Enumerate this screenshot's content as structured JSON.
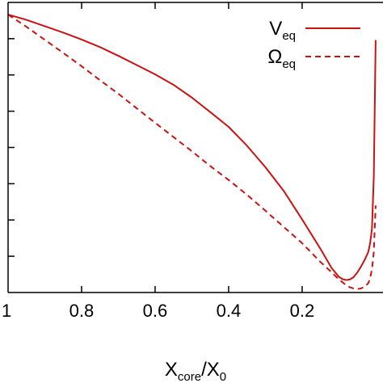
{
  "chart_data": {
    "type": "line",
    "xlabel": {
      "parts": [
        {
          "text": "X",
          "sub": false
        },
        {
          "text": "core",
          "sub": true
        },
        {
          "text": "/X",
          "sub": false
        },
        {
          "text": "0",
          "sub": true
        }
      ]
    },
    "ylabel": "",
    "x_reversed": true,
    "xlim": [
      1.0,
      -0.02
    ],
    "ylim": [
      0.0,
      1.0
    ],
    "x_ticks": [
      {
        "value": 1.0,
        "label": "1"
      },
      {
        "value": 0.8,
        "label": "0.8"
      },
      {
        "value": 0.6,
        "label": "0.6"
      },
      {
        "value": 0.4,
        "label": "0.4"
      },
      {
        "value": 0.2,
        "label": "0.2"
      }
    ],
    "y_ticks": [
      0.125,
      0.25,
      0.375,
      0.5,
      0.625,
      0.75,
      0.875
    ],
    "y_tick_labels_visible": false,
    "grid": false,
    "legend_position": "top-right",
    "series": [
      {
        "name": {
          "main": "V",
          "sub": "eq"
        },
        "style": "solid",
        "color": "#cc1111",
        "x": [
          1.0,
          0.95,
          0.9,
          0.85,
          0.8,
          0.75,
          0.7,
          0.65,
          0.6,
          0.55,
          0.5,
          0.45,
          0.4,
          0.35,
          0.3,
          0.25,
          0.2,
          0.15,
          0.12,
          0.1,
          0.09,
          0.08,
          0.07,
          0.06,
          0.05,
          0.04,
          0.03,
          0.02,
          0.015,
          0.01,
          0.005,
          0.0
        ],
        "y": [
          0.958,
          0.94,
          0.918,
          0.896,
          0.872,
          0.846,
          0.816,
          0.784,
          0.752,
          0.716,
          0.672,
          0.622,
          0.571,
          0.506,
          0.432,
          0.35,
          0.252,
          0.15,
          0.085,
          0.054,
          0.046,
          0.043,
          0.045,
          0.053,
          0.069,
          0.089,
          0.112,
          0.14,
          0.17,
          0.22,
          0.4,
          0.87
        ]
      },
      {
        "name": {
          "main": "Ω",
          "sub": "eq"
        },
        "style": "dashed",
        "color": "#cc1111",
        "x": [
          1.0,
          0.95,
          0.9,
          0.85,
          0.8,
          0.75,
          0.7,
          0.65,
          0.6,
          0.55,
          0.5,
          0.45,
          0.4,
          0.35,
          0.3,
          0.25,
          0.2,
          0.15,
          0.12,
          0.1,
          0.09,
          0.08,
          0.07,
          0.06,
          0.05,
          0.04,
          0.03,
          0.02,
          0.015,
          0.01,
          0.005,
          0.0
        ],
        "y": [
          0.958,
          0.916,
          0.871,
          0.826,
          0.78,
          0.732,
          0.685,
          0.635,
          0.585,
          0.536,
          0.487,
          0.436,
          0.388,
          0.337,
          0.282,
          0.226,
          0.17,
          0.105,
          0.07,
          0.045,
          0.035,
          0.025,
          0.018,
          0.014,
          0.012,
          0.014,
          0.02,
          0.032,
          0.05,
          0.08,
          0.14,
          0.3
        ]
      }
    ]
  }
}
